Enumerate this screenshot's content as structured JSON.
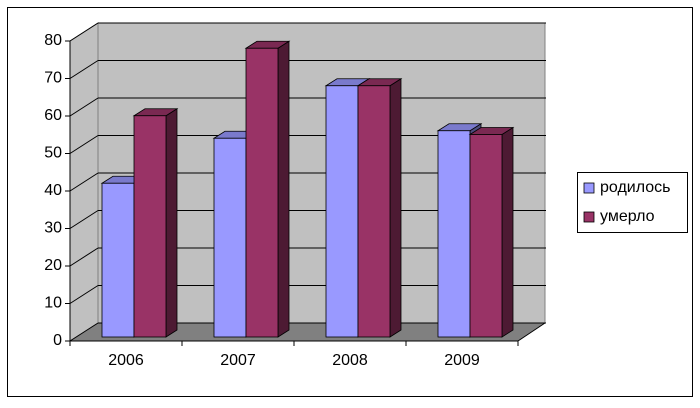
{
  "chart_data": {
    "type": "bar3d",
    "categories": [
      "2006",
      "2007",
      "2008",
      "2009"
    ],
    "series": [
      {
        "name": "родилось",
        "color": "#9999ff",
        "values": [
          41,
          53,
          67,
          55
        ]
      },
      {
        "name": "умерло",
        "color": "#993366",
        "values": [
          59,
          77,
          67,
          54
        ]
      }
    ],
    "ylim": [
      0,
      80
    ],
    "yticks": [
      0,
      10,
      20,
      30,
      40,
      50,
      60,
      70,
      80
    ],
    "grid": true,
    "legend": "right"
  }
}
